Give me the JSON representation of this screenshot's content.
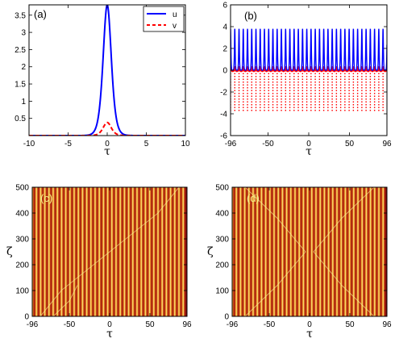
{
  "chart_data": [
    {
      "type": "line",
      "panel_label": "(a)",
      "xlabel": "τ",
      "ylabel": "",
      "xlim": [
        -10,
        10
      ],
      "ylim": [
        0,
        3.8
      ],
      "xticks": [
        "-10",
        "-5",
        "0",
        "5",
        "10"
      ],
      "yticks": [
        "0.5",
        "1",
        "1.5",
        "2",
        "2.5",
        "3",
        "3.5"
      ],
      "legend_position": "top-right",
      "series": [
        {
          "name": "u",
          "color": "#0000ff",
          "style": "solid",
          "peak": 3.8,
          "width": 0.7
        },
        {
          "name": "v",
          "color": "#ff0000",
          "style": "dashed",
          "peak": 0.38,
          "width": 0.7
        }
      ]
    },
    {
      "type": "line",
      "panel_label": "(b)",
      "xlabel": "τ",
      "ylabel": "",
      "xlim": [
        -96,
        96
      ],
      "ylim": [
        -6,
        6
      ],
      "xticks": [
        "-96",
        "-50",
        "0",
        "50",
        "96"
      ],
      "yticks": [
        "-6",
        "-4",
        "-2",
        "0",
        "2",
        "4",
        "6"
      ],
      "period": 5.2,
      "series": [
        {
          "name": "u",
          "color": "#0000ff",
          "style": "solid",
          "max": 3.8,
          "min": 0
        },
        {
          "name": "v",
          "color": "#ff0000",
          "style": "dotted",
          "max": 0.38,
          "min": -3.8
        }
      ]
    },
    {
      "type": "heatmap",
      "panel_label": "(c)",
      "xlabel": "τ",
      "ylabel": "ζ",
      "xlim": [
        -96,
        96
      ],
      "ylim": [
        0,
        500
      ],
      "xticks": [
        "-96",
        "-50",
        "0",
        "50",
        "96"
      ],
      "yticks": [
        "0",
        "100",
        "200",
        "300",
        "400",
        "500"
      ],
      "period": 5.2,
      "colormap": [
        "#8b0e0e",
        "#e8761b",
        "#f3ee88"
      ]
    },
    {
      "type": "heatmap",
      "panel_label": "(d)",
      "xlabel": "τ",
      "ylabel": "ζ",
      "xlim": [
        -96,
        96
      ],
      "ylim": [
        0,
        500
      ],
      "xticks": [
        "-96",
        "-50",
        "0",
        "50",
        "96"
      ],
      "yticks": [
        "0",
        "100",
        "200",
        "300",
        "400",
        "500"
      ],
      "period": 5.2,
      "colormap": [
        "#8b0e0e",
        "#e8761b",
        "#f3ee88"
      ]
    }
  ]
}
